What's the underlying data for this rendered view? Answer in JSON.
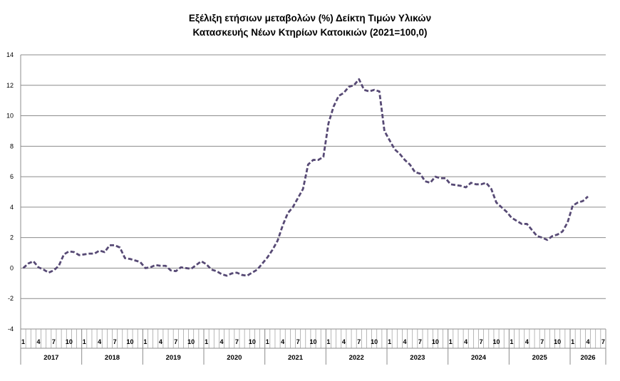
{
  "chart_data": {
    "type": "line",
    "title_line1": "Εξέλιξη ετήσιων μεταβολών (%) Δείκτη Τιμών Υλικών",
    "title_line2": "Κατασκευής Νέων Κτηρίων Κατοικιών (2021=100,0)",
    "ylim": [
      -4,
      14
    ],
    "yticks": [
      -4,
      -2,
      0,
      2,
      4,
      6,
      8,
      10,
      12,
      14
    ],
    "grid": true,
    "month_tick_labels": [
      "1",
      "4",
      "7",
      "10"
    ],
    "years": [
      "2017",
      "2018",
      "2019",
      "2020",
      "2021",
      "2022",
      "2023",
      "2024",
      "2025",
      "2026"
    ],
    "start_year": 2017,
    "end_month_2026": 7,
    "series": [
      {
        "color": "#574a75",
        "line_style": "dashed",
        "values": [
          0.0,
          0.3,
          0.45,
          0.05,
          -0.1,
          -0.3,
          -0.15,
          0.15,
          0.9,
          1.1,
          1.05,
          0.85,
          0.9,
          0.95,
          0.95,
          1.15,
          1.05,
          1.5,
          1.5,
          1.35,
          0.65,
          0.6,
          0.5,
          0.4,
          0.0,
          0.05,
          0.2,
          0.15,
          0.15,
          -0.15,
          -0.2,
          0.05,
          0.0,
          -0.05,
          0.2,
          0.45,
          0.25,
          -0.1,
          -0.2,
          -0.4,
          -0.5,
          -0.35,
          -0.3,
          -0.45,
          -0.5,
          -0.3,
          -0.1,
          0.3,
          0.7,
          1.2,
          1.8,
          2.8,
          3.6,
          4.0,
          4.6,
          5.2,
          6.8,
          7.1,
          7.1,
          7.3,
          9.5,
          10.6,
          11.3,
          11.5,
          11.9,
          12.0,
          12.4,
          11.7,
          11.6,
          11.7,
          11.6,
          9.0,
          8.4,
          7.8,
          7.5,
          7.1,
          6.8,
          6.3,
          6.2,
          5.7,
          5.6,
          6.0,
          5.9,
          5.9,
          5.5,
          5.45,
          5.4,
          5.3,
          5.6,
          5.5,
          5.5,
          5.6,
          5.2,
          4.3,
          4.0,
          3.7,
          3.3,
          3.1,
          2.9,
          2.9,
          2.5,
          2.1,
          2.0,
          1.85,
          2.1,
          2.2,
          2.4,
          3.0,
          4.1,
          4.3,
          4.4,
          4.7
        ]
      }
    ]
  }
}
